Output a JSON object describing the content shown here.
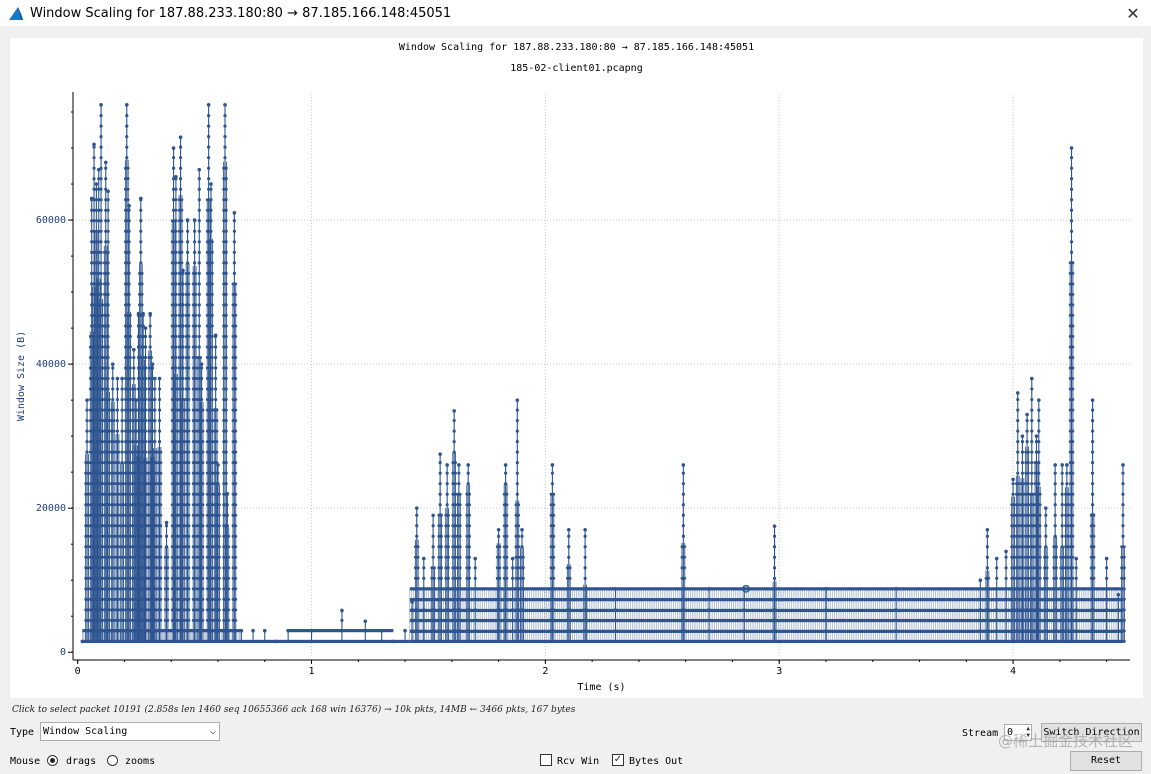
{
  "window": {
    "title": "Window Scaling for 187.88.233.180:80 → 87.185.166.148:45051",
    "close_glyph": "✕",
    "app_icon": "wireshark-fin-icon"
  },
  "plot": {
    "title": "Window Scaling for 187.88.233.180:80 → 87.185.166.148:45051",
    "subtitle": "185-02-client01.pcapng"
  },
  "chart_data": {
    "type": "scatter",
    "title": "Window Scaling for 187.88.233.180:80 → 87.185.166.148:45051",
    "subtitle": "185-02-client01.pcapng",
    "xlabel": "Time (s)",
    "ylabel": "Window Size (B)",
    "xlim": [
      -0.02,
      4.5
    ],
    "ylim": [
      -800,
      77500
    ],
    "x_ticks": [
      0,
      1,
      2,
      3,
      4
    ],
    "y_ticks": [
      0,
      20000,
      40000,
      60000
    ],
    "grid": true,
    "line_color": "#2e5590",
    "series": [
      {
        "values_note": "bytes-in-flight (approximate envelope of peaks)",
        "peaks": [
          [
            0.02,
            1500
          ],
          [
            0.04,
            35000
          ],
          [
            0.06,
            63000
          ],
          [
            0.07,
            70500
          ],
          [
            0.08,
            65000
          ],
          [
            0.09,
            67000
          ],
          [
            0.1,
            76000
          ],
          [
            0.12,
            68000
          ],
          [
            0.13,
            64000
          ],
          [
            0.15,
            40000
          ],
          [
            0.17,
            38000
          ],
          [
            0.19,
            38000
          ],
          [
            0.21,
            76000
          ],
          [
            0.22,
            62000
          ],
          [
            0.24,
            42000
          ],
          [
            0.25,
            35000
          ],
          [
            0.26,
            47000
          ],
          [
            0.27,
            63000
          ],
          [
            0.28,
            47000
          ],
          [
            0.29,
            45000
          ],
          [
            0.31,
            47000
          ],
          [
            0.32,
            40000
          ],
          [
            0.33,
            38000
          ],
          [
            0.35,
            38000
          ],
          [
            0.38,
            18000
          ],
          [
            0.41,
            70000
          ],
          [
            0.42,
            66000
          ],
          [
            0.44,
            71500
          ],
          [
            0.45,
            53000
          ],
          [
            0.47,
            60000
          ],
          [
            0.5,
            60000
          ],
          [
            0.52,
            67000
          ],
          [
            0.53,
            40000
          ],
          [
            0.56,
            76000
          ],
          [
            0.57,
            65000
          ],
          [
            0.59,
            44000
          ],
          [
            0.6,
            26000
          ],
          [
            0.63,
            76000
          ],
          [
            0.64,
            22000
          ],
          [
            0.67,
            61000
          ],
          [
            0.7,
            3000
          ],
          [
            0.75,
            3000
          ],
          [
            0.8,
            3000
          ],
          [
            0.85,
            1500
          ],
          [
            0.9,
            3000
          ],
          [
            1.0,
            3000
          ],
          [
            1.13,
            5800
          ],
          [
            1.23,
            4300
          ],
          [
            1.3,
            3000
          ],
          [
            1.35,
            1500
          ],
          [
            1.4,
            3000
          ],
          [
            1.43,
            7000
          ],
          [
            1.45,
            20000
          ],
          [
            1.48,
            13000
          ],
          [
            1.52,
            19000
          ],
          [
            1.55,
            27500
          ],
          [
            1.58,
            26000
          ],
          [
            1.61,
            33500
          ],
          [
            1.63,
            26000
          ],
          [
            1.67,
            26000
          ],
          [
            1.7,
            13000
          ],
          [
            1.8,
            17000
          ],
          [
            1.83,
            26000
          ],
          [
            1.86,
            13000
          ],
          [
            1.88,
            35000
          ],
          [
            1.9,
            17000
          ],
          [
            2.03,
            26000
          ],
          [
            2.1,
            17000
          ],
          [
            2.17,
            17000
          ],
          [
            2.3,
            8800
          ],
          [
            2.59,
            26000
          ],
          [
            2.7,
            8800
          ],
          [
            2.85,
            8800
          ],
          [
            2.98,
            17500
          ],
          [
            3.2,
            8800
          ],
          [
            3.5,
            8800
          ],
          [
            3.86,
            10000
          ],
          [
            3.89,
            17000
          ],
          [
            3.93,
            13000
          ],
          [
            3.97,
            14000
          ],
          [
            4.0,
            24000
          ],
          [
            4.02,
            36000
          ],
          [
            4.04,
            30000
          ],
          [
            4.06,
            33000
          ],
          [
            4.08,
            38000
          ],
          [
            4.1,
            30000
          ],
          [
            4.11,
            35000
          ],
          [
            4.14,
            20000
          ],
          [
            4.18,
            26000
          ],
          [
            4.21,
            26000
          ],
          [
            4.23,
            26000
          ],
          [
            4.25,
            70000
          ],
          [
            4.27,
            13000
          ],
          [
            4.34,
            35000
          ],
          [
            4.4,
            13000
          ],
          [
            4.45,
            8000
          ],
          [
            4.47,
            26000
          ]
        ]
      }
    ]
  },
  "status": {
    "hint": "Click to select packet 10191 (2.858s len 1460 seq 10655366 ack 168 win 16376) → 10k pkts, 14MB ← 3466 pkts, 167 bytes"
  },
  "controls": {
    "type_label": "Type",
    "type_value": "Window Scaling",
    "mouse_label": "Mouse",
    "drags_label": "drags",
    "zooms_label": "zooms",
    "rcv_win_label": "Rcv Win",
    "bytes_out_label": "Bytes Out",
    "stream_label": "Stream",
    "stream_value": "0",
    "switch_direction_label": "Switch Direction",
    "reset_label": "Reset",
    "mouse_mode": "drags",
    "rcv_win_checked": false,
    "bytes_out_checked": true
  },
  "watermark": "@稀土掘金技术社区"
}
